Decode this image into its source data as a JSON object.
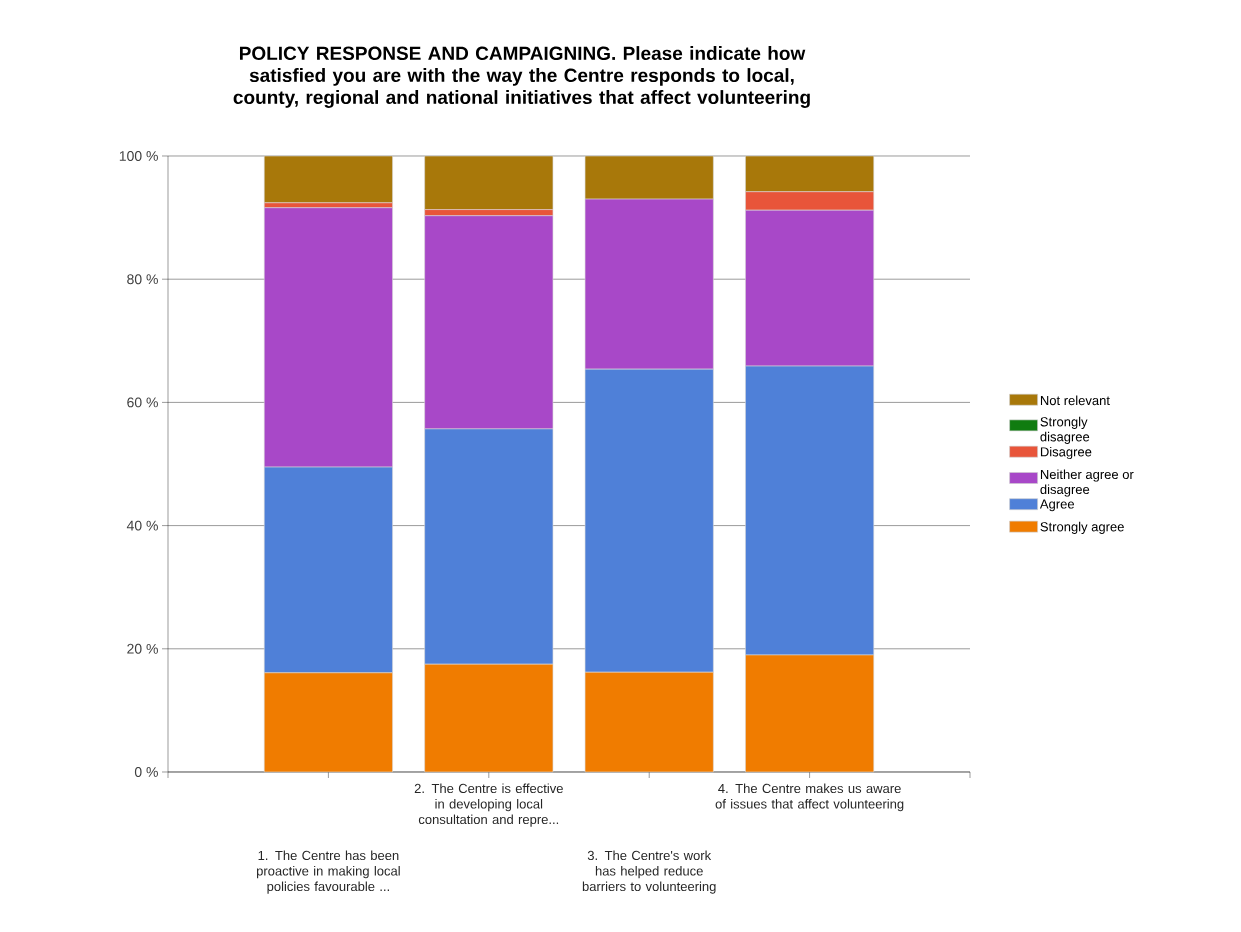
{
  "chart_data": {
    "type": "bar",
    "stacked": true,
    "title": "POLICY RESPONSE AND CAMPAIGNING. Please indicate how satisfied you are with the way the Centre responds to local, county, regional and national initiatives that affect volunteering",
    "categories": [
      "1. The Centre has been proactive in making local policies favourable ...",
      "2. The Centre is effective in developing local consultation and repre...",
      "3. The Centre's work has helped reduce barriers to volunteering",
      "4. The Centre makes us aware of issues that affect volunteering"
    ],
    "series": [
      {
        "name": "Strongly agree",
        "color": "#f07c00",
        "values": [
          16.1,
          17.5,
          16.2,
          19.0
        ]
      },
      {
        "name": "Agree",
        "color": "#4f80d8",
        "values": [
          33.4,
          38.2,
          49.2,
          46.9
        ]
      },
      {
        "name": "Neither agree or disagree",
        "color": "#a848c8",
        "values": [
          42.1,
          34.6,
          27.6,
          25.3
        ]
      },
      {
        "name": "Disagree",
        "color": "#e8553a",
        "values": [
          0.8,
          1.0,
          0,
          3.0
        ]
      },
      {
        "name": "Strongly disagree",
        "color": "#107c10",
        "values": [
          0,
          0,
          0,
          0
        ]
      },
      {
        "name": "Not relevant",
        "color": "#a8780a",
        "values": [
          7.6,
          8.7,
          7.0,
          5.8
        ]
      }
    ],
    "ylim": [
      0,
      100
    ],
    "yticks": [
      {
        "value": 0,
        "label": "0 %"
      },
      {
        "value": 20,
        "label": "20 %"
      },
      {
        "value": 40,
        "label": "40 %"
      },
      {
        "value": 60,
        "label": "60 %"
      },
      {
        "value": 80,
        "label": "80 %"
      },
      {
        "value": 100,
        "label": "100 %"
      }
    ],
    "grid": "y",
    "legend": "right"
  }
}
